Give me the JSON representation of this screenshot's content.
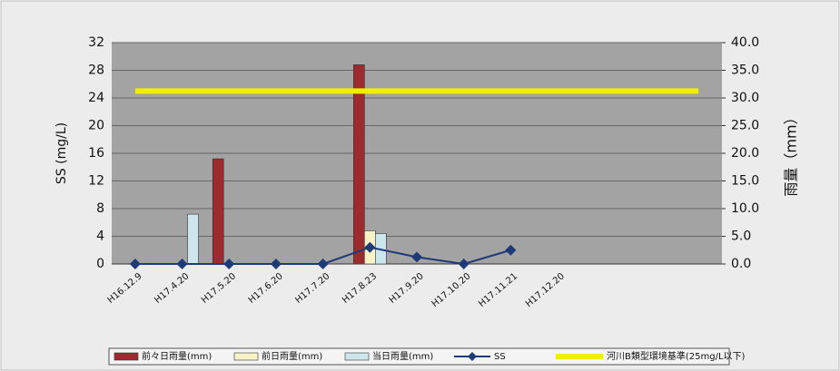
{
  "chart_data": {
    "type": "bar",
    "categories": [
      "H16.12.9",
      "H17.4.20",
      "H17.5.20",
      "H17.6.20",
      "H17.7.20",
      "H17.8.23",
      "H17.9.20",
      "H17.10.20",
      "H17.11.21",
      "H17.12.20",
      null,
      null,
      null
    ],
    "y_label": "SS (mg/L)",
    "y2_label": "雨量（mm）",
    "ylim": [
      0,
      32
    ],
    "yticks": [
      0,
      4,
      8,
      12,
      16,
      20,
      24,
      28,
      32
    ],
    "y2lim": [
      0,
      40
    ],
    "y2ticks": [
      {
        "value": 0,
        "label": "0.0"
      },
      {
        "value": 5,
        "label": "5.0"
      },
      {
        "value": 10,
        "label": "10.0"
      },
      {
        "value": 15,
        "label": "15.0"
      },
      {
        "value": 20,
        "label": "20.0"
      },
      {
        "value": 25,
        "label": "25.0"
      },
      {
        "value": 30,
        "label": "30.0"
      },
      {
        "value": 35,
        "label": "35.0"
      },
      {
        "value": 40,
        "label": "40.0"
      }
    ],
    "grid": true,
    "legend": "bottom",
    "series": [
      {
        "name": "前々日雨量(mm)",
        "type": "bar",
        "axis": "y2",
        "color": "#9b2b2e",
        "values": [
          null,
          null,
          19,
          null,
          null,
          36,
          null,
          null,
          null,
          null,
          null,
          null,
          null
        ]
      },
      {
        "name": "前日雨量(mm)",
        "type": "bar",
        "axis": "y2",
        "color": "#f7f3c6",
        "values": [
          null,
          null,
          null,
          null,
          null,
          6,
          null,
          null,
          null,
          null,
          null,
          null,
          null
        ]
      },
      {
        "name": "当日雨量(mm)",
        "type": "bar",
        "axis": "y2",
        "color": "#cde6ee",
        "values": [
          null,
          9,
          null,
          null,
          null,
          5.5,
          null,
          null,
          null,
          null,
          null,
          null,
          null
        ]
      },
      {
        "name": "SS",
        "type": "line",
        "marker": "diamond",
        "color": "#1e3a78",
        "values": [
          0,
          0,
          0,
          0,
          0,
          2.4,
          1,
          0,
          2,
          null,
          null,
          null,
          null
        ]
      },
      {
        "name": "河川B類型環境基準(25mg/L以下)",
        "type": "line",
        "color": "#f2ee00",
        "values": [
          25,
          25,
          25,
          25,
          25,
          25,
          25,
          25,
          25,
          25,
          25,
          25,
          25
        ]
      }
    ]
  }
}
